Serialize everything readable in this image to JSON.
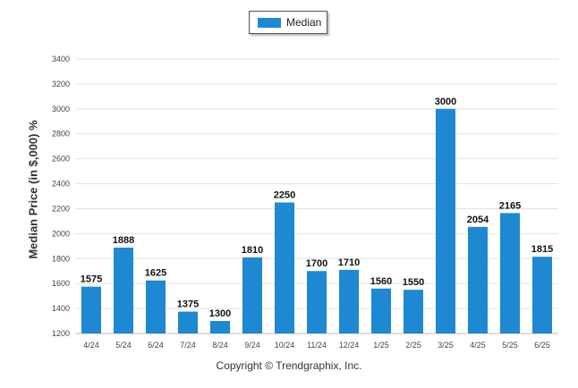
{
  "chart_data": {
    "type": "bar",
    "categories": [
      "4/24",
      "5/24",
      "6/24",
      "7/24",
      "8/24",
      "9/24",
      "10/24",
      "11/24",
      "12/24",
      "1/25",
      "2/25",
      "3/25",
      "4/25",
      "5/25",
      "6/25"
    ],
    "series": [
      {
        "name": "Median",
        "values": [
          1575,
          1888,
          1625,
          1375,
          1300,
          1810,
          2250,
          1700,
          1710,
          1560,
          1550,
          3000,
          2054,
          2165,
          1815
        ]
      }
    ],
    "data_labels": [
      "1575",
      "1888",
      "1625",
      "1375",
      "1300",
      "1810",
      "2250",
      "1700",
      "1710",
      "1560",
      "1550",
      "3000",
      "2054",
      "2165",
      "1815"
    ],
    "ylabel": "Median Price (in $,000) %",
    "ylim": [
      1200,
      3400
    ],
    "yticks": [
      1200,
      1400,
      1600,
      1800,
      2000,
      2200,
      2400,
      2600,
      2800,
      3000,
      3200,
      3400
    ],
    "grid": true,
    "legend_position": "top-center",
    "bar_color": "#1e88d2"
  },
  "footer": {
    "copyright": "Copyright © Trendgraphix, Inc."
  }
}
